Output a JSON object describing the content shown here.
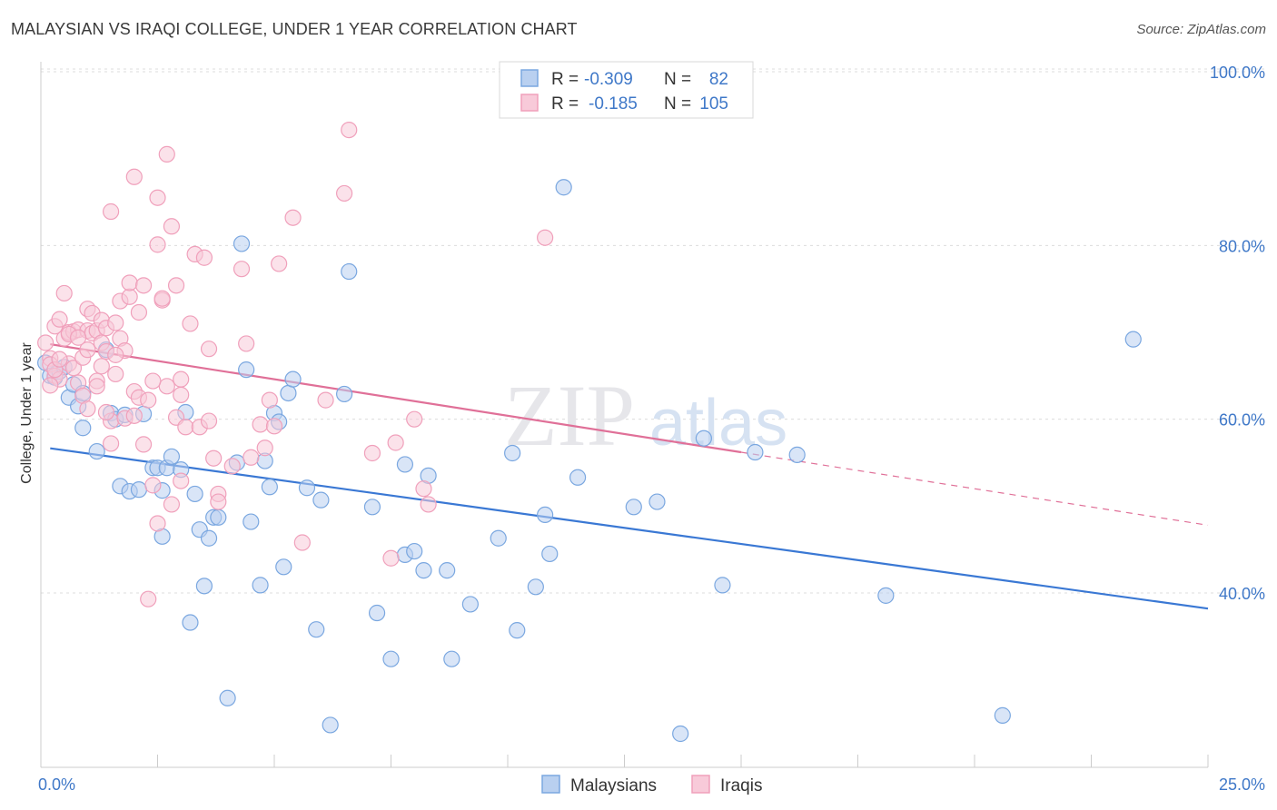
{
  "title": "MALAYSIAN VS IRAQI COLLEGE, UNDER 1 YEAR CORRELATION CHART",
  "source": "Source: ZipAtlas.com",
  "chart_data": {
    "type": "scatter",
    "title": "MALAYSIAN VS IRAQI COLLEGE, UNDER 1 YEAR CORRELATION CHART",
    "xlabel": "",
    "ylabel": "College, Under 1 year",
    "xlim": [
      0,
      25
    ],
    "ylim": [
      20,
      103
    ],
    "x_tick_labels": [
      "0.0%",
      "25.0%"
    ],
    "x_ticks": [
      0,
      25
    ],
    "y_tick_labels": [
      "100.0%",
      "80.0%",
      "60.0%",
      "40.0%"
    ],
    "y_ticks": [
      100,
      80,
      60,
      40
    ],
    "watermark": "ZIPatlas",
    "legend": {
      "position": "top-center",
      "rows": [
        {
          "r_label": "R =",
          "r_value": "-0.309",
          "n_label": "N =",
          "n_value": "82"
        },
        {
          "r_label": "R =",
          "r_value": "-0.185",
          "n_label": "N =",
          "n_value": "105"
        }
      ]
    },
    "series": [
      {
        "name": "Malaysians",
        "color": "#7aa7e0",
        "fill": "#b9d0f0",
        "line_color": "#3a78d4",
        "trend": {
          "x": [
            0,
            25
          ],
          "y": [
            56.8,
            38.2
          ],
          "dashed_from": null
        },
        "points": [
          [
            0.1,
            66.5
          ],
          [
            0.2,
            65.0
          ],
          [
            0.3,
            64.8
          ],
          [
            0.4,
            65.5
          ],
          [
            0.5,
            66.0
          ],
          [
            0.6,
            62.5
          ],
          [
            0.7,
            64.0
          ],
          [
            0.8,
            61.5
          ],
          [
            0.9,
            63.0
          ],
          [
            0.9,
            59.0
          ],
          [
            1.2,
            56.3
          ],
          [
            1.4,
            68.0
          ],
          [
            1.5,
            60.7
          ],
          [
            1.6,
            60.0
          ],
          [
            1.7,
            52.3
          ],
          [
            1.8,
            60.5
          ],
          [
            1.9,
            51.7
          ],
          [
            2.1,
            51.9
          ],
          [
            2.2,
            60.6
          ],
          [
            2.4,
            54.4
          ],
          [
            2.5,
            54.4
          ],
          [
            2.6,
            51.8
          ],
          [
            2.6,
            46.5
          ],
          [
            2.7,
            54.4
          ],
          [
            2.8,
            55.7
          ],
          [
            3.0,
            54.2
          ],
          [
            3.1,
            60.8
          ],
          [
            3.2,
            36.6
          ],
          [
            3.3,
            51.4
          ],
          [
            3.4,
            47.3
          ],
          [
            3.5,
            40.8
          ],
          [
            3.6,
            46.3
          ],
          [
            3.7,
            48.7
          ],
          [
            3.8,
            48.7
          ],
          [
            4.0,
            27.9
          ],
          [
            4.2,
            55.0
          ],
          [
            4.3,
            80.2
          ],
          [
            4.4,
            65.7
          ],
          [
            4.5,
            48.2
          ],
          [
            4.7,
            40.9
          ],
          [
            4.8,
            55.2
          ],
          [
            4.9,
            52.2
          ],
          [
            5.0,
            60.7
          ],
          [
            5.1,
            59.7
          ],
          [
            5.2,
            43.0
          ],
          [
            5.3,
            63.0
          ],
          [
            5.4,
            64.6
          ],
          [
            5.7,
            52.1
          ],
          [
            5.9,
            35.8
          ],
          [
            6.0,
            50.7
          ],
          [
            6.2,
            24.8
          ],
          [
            6.5,
            62.9
          ],
          [
            6.6,
            77.0
          ],
          [
            7.1,
            49.9
          ],
          [
            7.2,
            37.7
          ],
          [
            7.5,
            32.4
          ],
          [
            7.8,
            54.8
          ],
          [
            7.8,
            44.4
          ],
          [
            8.0,
            44.8
          ],
          [
            8.2,
            42.6
          ],
          [
            8.3,
            53.5
          ],
          [
            8.7,
            42.6
          ],
          [
            8.8,
            32.4
          ],
          [
            9.2,
            38.7
          ],
          [
            9.8,
            46.3
          ],
          [
            10.1,
            56.1
          ],
          [
            10.2,
            35.7
          ],
          [
            10.6,
            40.7
          ],
          [
            10.8,
            49.0
          ],
          [
            10.9,
            44.5
          ],
          [
            11.2,
            86.7
          ],
          [
            11.5,
            53.3
          ],
          [
            12.7,
            49.9
          ],
          [
            13.2,
            50.5
          ],
          [
            13.7,
            23.8
          ],
          [
            14.2,
            57.8
          ],
          [
            14.6,
            40.9
          ],
          [
            15.3,
            56.2
          ],
          [
            16.2,
            55.9
          ],
          [
            18.1,
            39.7
          ],
          [
            20.6,
            25.9
          ],
          [
            23.4,
            69.2
          ]
        ]
      },
      {
        "name": "Iraqis",
        "color": "#f0a0bb",
        "fill": "#f8cad9",
        "line_color": "#e07098",
        "trend": {
          "x": [
            0,
            25
          ],
          "y": [
            68.8,
            47.8
          ],
          "dashed_from": 15.0
        },
        "points": [
          [
            0.1,
            68.8
          ],
          [
            0.2,
            67.0
          ],
          [
            0.2,
            66.3
          ],
          [
            0.3,
            70.7
          ],
          [
            0.3,
            65.0
          ],
          [
            0.4,
            71.5
          ],
          [
            0.4,
            64.6
          ],
          [
            0.5,
            74.5
          ],
          [
            0.5,
            69.3
          ],
          [
            0.6,
            70.0
          ],
          [
            0.6,
            66.4
          ],
          [
            0.7,
            65.9
          ],
          [
            0.7,
            70.1
          ],
          [
            0.8,
            70.3
          ],
          [
            0.8,
            64.2
          ],
          [
            0.9,
            67.1
          ],
          [
            0.9,
            62.7
          ],
          [
            1.0,
            70.2
          ],
          [
            1.0,
            72.7
          ],
          [
            1.0,
            68.0
          ],
          [
            1.1,
            72.2
          ],
          [
            1.1,
            69.9
          ],
          [
            1.2,
            64.4
          ],
          [
            1.2,
            70.2
          ],
          [
            1.3,
            71.4
          ],
          [
            1.3,
            68.8
          ],
          [
            1.4,
            70.5
          ],
          [
            1.4,
            67.8
          ],
          [
            1.5,
            83.9
          ],
          [
            1.5,
            59.8
          ],
          [
            1.5,
            57.2
          ],
          [
            1.6,
            71.1
          ],
          [
            1.6,
            65.2
          ],
          [
            1.7,
            73.6
          ],
          [
            1.7,
            69.3
          ],
          [
            1.8,
            67.9
          ],
          [
            1.8,
            60.1
          ],
          [
            1.9,
            74.1
          ],
          [
            1.9,
            75.7
          ],
          [
            2.0,
            63.2
          ],
          [
            2.0,
            87.9
          ],
          [
            2.1,
            62.5
          ],
          [
            2.1,
            72.3
          ],
          [
            2.2,
            57.1
          ],
          [
            2.2,
            75.4
          ],
          [
            2.3,
            39.3
          ],
          [
            2.3,
            62.2
          ],
          [
            2.4,
            52.4
          ],
          [
            2.5,
            80.1
          ],
          [
            2.5,
            48.0
          ],
          [
            2.5,
            85.5
          ],
          [
            2.6,
            73.7
          ],
          [
            2.6,
            73.9
          ],
          [
            2.7,
            63.8
          ],
          [
            2.7,
            90.5
          ],
          [
            2.8,
            50.2
          ],
          [
            2.8,
            82.2
          ],
          [
            2.9,
            60.2
          ],
          [
            2.9,
            75.4
          ],
          [
            3.0,
            64.6
          ],
          [
            3.0,
            52.9
          ],
          [
            3.1,
            59.1
          ],
          [
            3.2,
            71.0
          ],
          [
            3.3,
            79.0
          ],
          [
            3.4,
            59.1
          ],
          [
            3.5,
            78.6
          ],
          [
            3.6,
            68.1
          ],
          [
            3.6,
            59.8
          ],
          [
            3.7,
            55.5
          ],
          [
            3.8,
            51.4
          ],
          [
            3.8,
            50.5
          ],
          [
            4.1,
            54.6
          ],
          [
            4.3,
            77.3
          ],
          [
            4.4,
            68.7
          ],
          [
            4.5,
            55.6
          ],
          [
            4.7,
            59.4
          ],
          [
            4.8,
            56.7
          ],
          [
            4.9,
            62.2
          ],
          [
            5.0,
            59.2
          ],
          [
            5.1,
            77.9
          ],
          [
            5.4,
            83.2
          ],
          [
            5.6,
            45.8
          ],
          [
            6.1,
            62.2
          ],
          [
            6.5,
            86.0
          ],
          [
            6.6,
            93.3
          ],
          [
            7.1,
            56.1
          ],
          [
            7.5,
            44.0
          ],
          [
            7.6,
            57.3
          ],
          [
            8.0,
            60.0
          ],
          [
            8.2,
            52.0
          ],
          [
            8.3,
            50.2
          ],
          [
            10.8,
            80.9
          ],
          [
            0.6,
            69.8
          ],
          [
            1.3,
            66.1
          ],
          [
            1.0,
            61.2
          ],
          [
            0.3,
            65.7
          ],
          [
            0.8,
            69.4
          ],
          [
            1.4,
            60.8
          ],
          [
            2.4,
            64.4
          ],
          [
            2.0,
            60.4
          ],
          [
            1.2,
            63.8
          ],
          [
            0.4,
            66.9
          ],
          [
            1.6,
            67.4
          ],
          [
            3.0,
            62.8
          ],
          [
            0.2,
            63.9
          ]
        ]
      }
    ]
  },
  "legend_bottom": [
    {
      "label": "Malaysians"
    },
    {
      "label": "Iraqis"
    }
  ]
}
